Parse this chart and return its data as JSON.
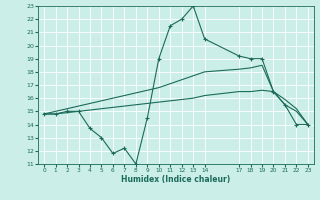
{
  "xlabel": "Humidex (Indice chaleur)",
  "bg_color": "#cceee8",
  "line_color": "#1a6b5a",
  "grid_color": "#ffffff",
  "x_ticks": [
    0,
    1,
    2,
    3,
    4,
    5,
    6,
    7,
    8,
    9,
    10,
    11,
    12,
    13,
    14,
    17,
    18,
    19,
    20,
    21,
    22,
    23
  ],
  "ylim": [
    11,
    23
  ],
  "xlim": [
    -0.5,
    23.5
  ],
  "y_ticks": [
    11,
    12,
    13,
    14,
    15,
    16,
    17,
    18,
    19,
    20,
    21,
    22,
    23
  ],
  "line1_x": [
    0,
    1,
    2,
    3,
    4,
    5,
    6,
    7,
    8,
    9,
    10,
    11,
    12,
    13,
    14,
    17,
    18,
    19,
    20,
    21,
    22,
    23
  ],
  "line1_y": [
    14.8,
    14.8,
    15.0,
    15.0,
    13.7,
    13.0,
    11.8,
    12.2,
    11.0,
    14.5,
    19.0,
    21.5,
    22.0,
    23.0,
    20.5,
    19.2,
    19.0,
    19.0,
    16.5,
    15.5,
    14.0,
    14.0
  ],
  "line2_x": [
    0,
    1,
    2,
    3,
    4,
    5,
    6,
    7,
    8,
    9,
    10,
    11,
    12,
    13,
    14,
    17,
    18,
    19,
    20,
    21,
    22,
    23
  ],
  "line2_y": [
    14.8,
    15.0,
    15.2,
    15.4,
    15.6,
    15.8,
    16.0,
    16.2,
    16.4,
    16.6,
    16.8,
    17.1,
    17.4,
    17.7,
    18.0,
    18.2,
    18.3,
    18.5,
    16.5,
    15.9,
    15.2,
    14.0
  ],
  "line3_x": [
    0,
    1,
    2,
    3,
    4,
    5,
    6,
    7,
    8,
    9,
    10,
    11,
    12,
    13,
    14,
    17,
    18,
    19,
    20,
    21,
    22,
    23
  ],
  "line3_y": [
    14.8,
    14.8,
    14.9,
    15.0,
    15.1,
    15.2,
    15.3,
    15.4,
    15.5,
    15.6,
    15.7,
    15.8,
    15.9,
    16.0,
    16.2,
    16.5,
    16.5,
    16.6,
    16.5,
    15.5,
    15.0,
    14.0
  ]
}
